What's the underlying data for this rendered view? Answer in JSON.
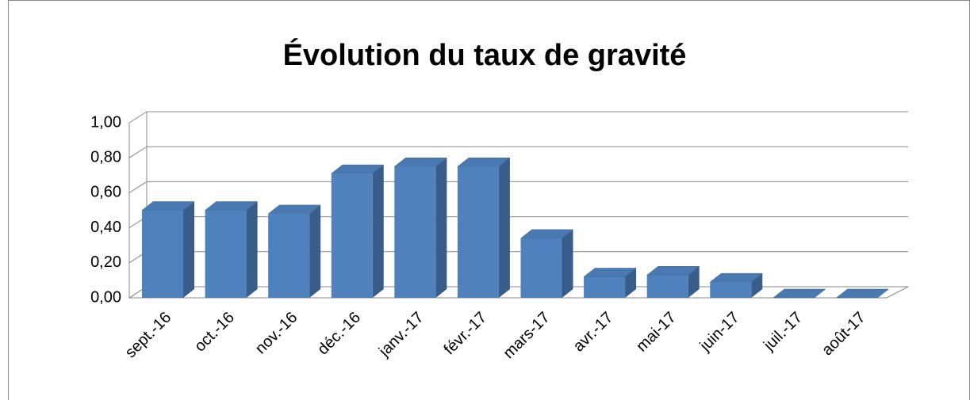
{
  "chart_data": {
    "type": "bar3d",
    "title": "Évolution du taux de gravité",
    "categories": [
      "sept.-16",
      "oct.-16",
      "nov.-16",
      "déc.-16",
      "janv.-17",
      "févr.-17",
      "mars-17",
      "avr.-17",
      "mai-17",
      "juin-17",
      "juil.-17",
      "août-17"
    ],
    "values": [
      0.5,
      0.5,
      0.48,
      0.71,
      0.75,
      0.75,
      0.34,
      0.12,
      0.13,
      0.09,
      0,
      0
    ],
    "color": "#4f81bd",
    "ylim": [
      0,
      1
    ],
    "yticks": [
      {
        "value": 0,
        "label": "0,00"
      },
      {
        "value": 0.2,
        "label": "0,20"
      },
      {
        "value": 0.4,
        "label": "0,40"
      },
      {
        "value": 0.6,
        "label": "0,60"
      },
      {
        "value": 0.8,
        "label": "0,80"
      },
      {
        "value": 1,
        "label": "1,00"
      }
    ],
    "grid": true
  }
}
